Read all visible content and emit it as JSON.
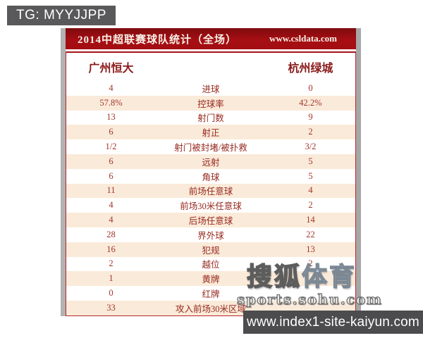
{
  "badge": {
    "text": "TG: MYYJJPP"
  },
  "header": {
    "title": "2014中超联赛球队统计（全场）",
    "site_link": "www.csldata.com"
  },
  "teams": {
    "home": "广州恒大",
    "away": "杭州绿城"
  },
  "stats": {
    "rows": [
      {
        "label": "进球",
        "home": "4",
        "away": "0"
      },
      {
        "label": "控球率",
        "home": "57.8%",
        "away": "42.2%"
      },
      {
        "label": "射门数",
        "home": "13",
        "away": "9"
      },
      {
        "label": "射正",
        "home": "6",
        "away": "2"
      },
      {
        "label": "射门被封堵/被扑救",
        "home": "1/2",
        "away": "3/2"
      },
      {
        "label": "远射",
        "home": "6",
        "away": "5"
      },
      {
        "label": "角球",
        "home": "6",
        "away": "5"
      },
      {
        "label": "前场任意球",
        "home": "11",
        "away": "4"
      },
      {
        "label": "前场30米任意球",
        "home": "4",
        "away": "2"
      },
      {
        "label": "后场任意球",
        "home": "4",
        "away": "14"
      },
      {
        "label": "界外球",
        "home": "28",
        "away": "22"
      },
      {
        "label": "犯规",
        "home": "16",
        "away": "13"
      },
      {
        "label": "越位",
        "home": "2",
        "away": "2"
      },
      {
        "label": "黄牌",
        "home": "1",
        "away": ""
      },
      {
        "label": "红牌",
        "home": "0",
        "away": ""
      },
      {
        "label": "攻入前场30米区域",
        "home": "33",
        "away": ""
      }
    ]
  },
  "watermark": {
    "brand_part1": "搜狐",
    "brand_part2": "体育",
    "site": "sports.sohu.com"
  },
  "footer": {
    "url": "www.index1-site-kaiyun.com"
  },
  "colors": {
    "header_red": "#a30d12",
    "row_alt_peach": "#faead9",
    "stat_text_red": "#a2362c",
    "badge_gray": "#59595b",
    "footer_gray": "#4c4c4e",
    "watermark_blue": "#b3c9de"
  }
}
